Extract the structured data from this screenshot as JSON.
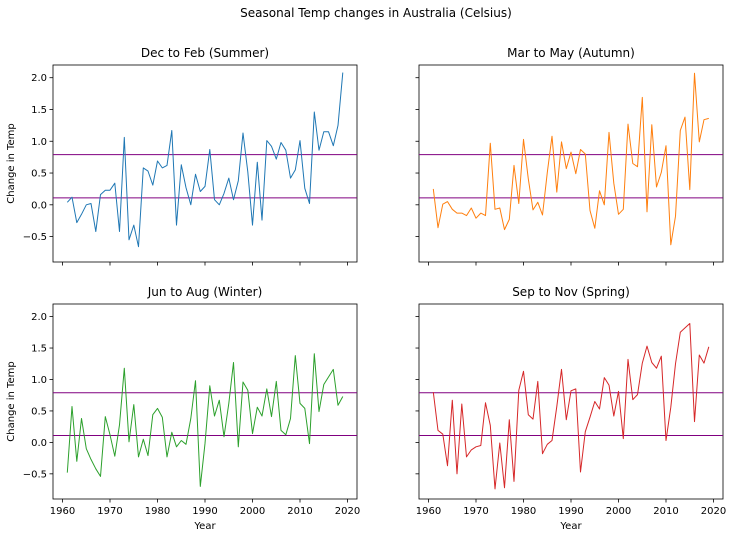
{
  "figure": {
    "title": "Seasonal Temp changes in Australia (Celsius)"
  },
  "colors": {
    "summer": "#1f77b4",
    "autumn": "#ff7f0e",
    "winter": "#2ca02c",
    "spring": "#d62728",
    "reference_lines": "#800080"
  },
  "chart_data": [
    {
      "type": "line",
      "title": "Dec to Feb (Summer)",
      "xlabel": "",
      "ylabel": "Change in Temp",
      "xlim": [
        1958,
        2022
      ],
      "ylim": [
        -0.9,
        2.2
      ],
      "xticks": [
        1960,
        1970,
        1980,
        1990,
        2000,
        2010,
        2020
      ],
      "yticks": [
        -0.5,
        0.0,
        0.5,
        1.0,
        1.5,
        2.0
      ],
      "show_xticklabels": false,
      "show_yticklabels": true,
      "hlines": [
        0.79,
        0.11
      ],
      "series": [
        {
          "color": "#1f77b4",
          "x": [
            1961,
            1962,
            1963,
            1964,
            1965,
            1966,
            1967,
            1968,
            1969,
            1970,
            1971,
            1972,
            1973,
            1974,
            1975,
            1976,
            1977,
            1978,
            1979,
            1980,
            1981,
            1982,
            1983,
            1984,
            1985,
            1986,
            1987,
            1988,
            1989,
            1990,
            1991,
            1992,
            1993,
            1994,
            1995,
            1996,
            1997,
            1998,
            1999,
            2000,
            2001,
            2002,
            2003,
            2004,
            2005,
            2006,
            2007,
            2008,
            2009,
            2010,
            2011,
            2012,
            2013,
            2014,
            2015,
            2016,
            2017,
            2018,
            2019
          ],
          "values": [
            0.04,
            0.12,
            -0.28,
            -0.15,
            0.0,
            0.02,
            -0.42,
            0.16,
            0.23,
            0.23,
            0.34,
            -0.42,
            1.06,
            -0.55,
            -0.32,
            -0.66,
            0.58,
            0.53,
            0.31,
            0.69,
            0.58,
            0.62,
            1.17,
            -0.32,
            0.63,
            0.27,
            0.0,
            0.48,
            0.21,
            0.29,
            0.87,
            0.08,
            0.0,
            0.18,
            0.42,
            0.08,
            0.38,
            1.13,
            0.52,
            -0.32,
            0.67,
            -0.24,
            1.01,
            0.92,
            0.72,
            0.98,
            0.86,
            0.42,
            0.55,
            1.01,
            0.26,
            0.02,
            1.46,
            0.86,
            1.15,
            1.15,
            0.93,
            1.25,
            2.08
          ]
        }
      ]
    },
    {
      "type": "line",
      "title": "Mar to May (Autumn)",
      "xlabel": "",
      "ylabel": "",
      "xlim": [
        1958,
        2022
      ],
      "ylim": [
        -0.9,
        2.2
      ],
      "xticks": [
        1960,
        1970,
        1980,
        1990,
        2000,
        2010,
        2020
      ],
      "yticks": [
        -0.5,
        0.0,
        0.5,
        1.0,
        1.5,
        2.0
      ],
      "show_xticklabels": false,
      "show_yticklabels": false,
      "hlines": [
        0.79,
        0.11
      ],
      "series": [
        {
          "color": "#ff7f0e",
          "x": [
            1961,
            1962,
            1963,
            1964,
            1965,
            1966,
            1967,
            1968,
            1969,
            1970,
            1971,
            1972,
            1973,
            1974,
            1975,
            1976,
            1977,
            1978,
            1979,
            1980,
            1981,
            1982,
            1983,
            1984,
            1985,
            1986,
            1987,
            1988,
            1989,
            1990,
            1991,
            1992,
            1993,
            1994,
            1995,
            1996,
            1997,
            1998,
            1999,
            2000,
            2001,
            2002,
            2003,
            2004,
            2005,
            2006,
            2007,
            2008,
            2009,
            2010,
            2011,
            2012,
            2013,
            2014,
            2015,
            2016,
            2017,
            2018,
            2019
          ],
          "values": [
            0.25,
            -0.36,
            0.01,
            0.05,
            -0.07,
            -0.13,
            -0.13,
            -0.17,
            -0.05,
            -0.21,
            -0.13,
            -0.17,
            0.97,
            -0.07,
            -0.05,
            -0.39,
            -0.23,
            0.62,
            0.02,
            1.03,
            0.41,
            -0.08,
            0.04,
            -0.16,
            0.51,
            1.08,
            0.2,
            0.99,
            0.57,
            0.83,
            0.49,
            0.87,
            0.8,
            -0.09,
            -0.37,
            0.22,
            0.0,
            1.14,
            0.34,
            -0.15,
            -0.07,
            1.27,
            0.65,
            0.6,
            1.69,
            -0.11,
            1.26,
            0.28,
            0.51,
            0.93,
            -0.63,
            -0.18,
            1.17,
            1.38,
            0.24,
            2.07,
            0.99,
            1.34,
            1.36
          ]
        }
      ]
    },
    {
      "type": "line",
      "title": "Jun to Aug (Winter)",
      "xlabel": "Year",
      "ylabel": "Change in Temp",
      "xlim": [
        1958,
        2022
      ],
      "ylim": [
        -0.9,
        2.2
      ],
      "xticks": [
        1960,
        1970,
        1980,
        1990,
        2000,
        2010,
        2020
      ],
      "yticks": [
        -0.5,
        0.0,
        0.5,
        1.0,
        1.5,
        2.0
      ],
      "show_xticklabels": true,
      "show_yticklabels": true,
      "hlines": [
        0.79,
        0.11
      ],
      "series": [
        {
          "color": "#2ca02c",
          "x": [
            1961,
            1962,
            1963,
            1964,
            1965,
            1966,
            1967,
            1968,
            1969,
            1970,
            1971,
            1972,
            1973,
            1974,
            1975,
            1976,
            1977,
            1978,
            1979,
            1980,
            1981,
            1982,
            1983,
            1984,
            1985,
            1986,
            1987,
            1988,
            1989,
            1990,
            1991,
            1992,
            1993,
            1994,
            1995,
            1996,
            1997,
            1998,
            1999,
            2000,
            2001,
            2002,
            2003,
            2004,
            2005,
            2006,
            2007,
            2008,
            2009,
            2010,
            2011,
            2012,
            2013,
            2014,
            2015,
            2016,
            2017,
            2018,
            2019
          ],
          "values": [
            -0.48,
            0.57,
            -0.3,
            0.38,
            -0.1,
            -0.27,
            -0.42,
            -0.54,
            0.41,
            0.12,
            -0.22,
            0.28,
            1.18,
            0.01,
            0.6,
            -0.23,
            0.05,
            -0.21,
            0.44,
            0.54,
            0.4,
            -0.23,
            0.16,
            -0.07,
            0.03,
            -0.03,
            0.38,
            0.98,
            -0.7,
            -0.02,
            0.9,
            0.42,
            0.67,
            0.09,
            0.62,
            1.27,
            -0.07,
            0.96,
            0.83,
            0.14,
            0.56,
            0.42,
            0.85,
            0.41,
            0.97,
            0.19,
            0.12,
            0.38,
            1.38,
            0.62,
            0.54,
            -0.02,
            1.41,
            0.49,
            0.92,
            1.04,
            1.16,
            0.59,
            0.73
          ]
        }
      ]
    },
    {
      "type": "line",
      "title": "Sep to Nov (Spring)",
      "xlabel": "Year",
      "ylabel": "",
      "xlim": [
        1958,
        2022
      ],
      "ylim": [
        -0.9,
        2.2
      ],
      "xticks": [
        1960,
        1970,
        1980,
        1990,
        2000,
        2010,
        2020
      ],
      "yticks": [
        -0.5,
        0.0,
        0.5,
        1.0,
        1.5,
        2.0
      ],
      "show_xticklabels": true,
      "show_yticklabels": false,
      "hlines": [
        0.79,
        0.11
      ],
      "series": [
        {
          "color": "#d62728",
          "x": [
            1961,
            1962,
            1963,
            1964,
            1965,
            1966,
            1967,
            1968,
            1969,
            1970,
            1971,
            1972,
            1973,
            1974,
            1975,
            1976,
            1977,
            1978,
            1979,
            1980,
            1981,
            1982,
            1983,
            1984,
            1985,
            1986,
            1987,
            1988,
            1989,
            1990,
            1991,
            1992,
            1993,
            1994,
            1995,
            1996,
            1997,
            1998,
            1999,
            2000,
            2001,
            2002,
            2003,
            2004,
            2005,
            2006,
            2007,
            2008,
            2009,
            2010,
            2011,
            2012,
            2013,
            2014,
            2015,
            2016,
            2017,
            2018,
            2019
          ],
          "values": [
            0.8,
            0.19,
            0.13,
            -0.37,
            0.67,
            -0.5,
            0.61,
            -0.23,
            -0.12,
            -0.07,
            -0.05,
            0.63,
            0.27,
            -0.74,
            -0.01,
            -0.72,
            0.36,
            -0.62,
            0.83,
            1.13,
            0.44,
            0.37,
            0.97,
            -0.18,
            -0.03,
            0.03,
            0.57,
            1.16,
            0.36,
            0.82,
            0.85,
            -0.47,
            0.17,
            0.4,
            0.65,
            0.53,
            1.03,
            0.91,
            0.42,
            0.81,
            0.06,
            1.32,
            0.68,
            0.76,
            1.26,
            1.53,
            1.27,
            1.18,
            1.37,
            0.03,
            0.56,
            1.25,
            1.75,
            1.82,
            1.89,
            0.33,
            1.39,
            1.26,
            1.52
          ]
        }
      ]
    }
  ]
}
